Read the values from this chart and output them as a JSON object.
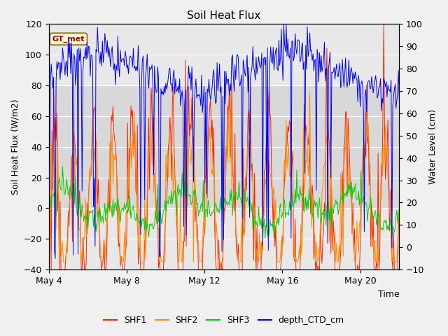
{
  "title": "Soil Heat Flux",
  "xlabel": "Time",
  "ylabel_left": "Soil Heat Flux (W/m2)",
  "ylabel_right": "Water Level (cm)",
  "annotation": "GT_met",
  "annotation_color": "#8B0000",
  "annotation_bg": "#FFFACD",
  "annotation_border": "#8B6914",
  "ylim_left": [
    -40,
    120
  ],
  "ylim_right": [
    -10,
    100
  ],
  "yticks_left": [
    -40,
    -20,
    0,
    20,
    40,
    60,
    80,
    100,
    120
  ],
  "yticks_right": [
    -10,
    0,
    10,
    20,
    30,
    40,
    50,
    60,
    70,
    80,
    90,
    100
  ],
  "xticklabels": [
    "May 4",
    "May 8",
    "May 12",
    "May 16",
    "May 20"
  ],
  "xtick_positions": [
    0,
    4,
    8,
    12,
    16
  ],
  "xlim": [
    0,
    18
  ],
  "bg_color": "#f0f0f0",
  "plot_bg_color": "#e8e8e8",
  "grid_color": "#ffffff",
  "shade_ymin": 0,
  "shade_ymax": 80,
  "shade_color": "#d8d8d8",
  "series_colors": {
    "SHF1": "#FF2200",
    "SHF2": "#FF8C00",
    "SHF3": "#00CC00",
    "depth_CTD_cm": "#0000EE"
  },
  "legend_labels": [
    "SHF1",
    "SHF2",
    "SHF3",
    "depth_CTD_cm"
  ],
  "seed": 42,
  "n_points": 432
}
